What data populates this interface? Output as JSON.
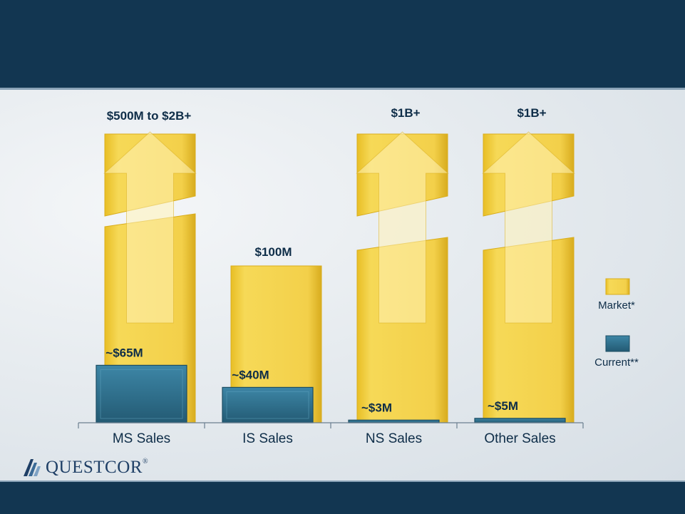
{
  "colors": {
    "market": "#f2cf3e",
    "market_edge": "#d9ad1c",
    "current": "#2e6f8c",
    "current_edge": "#1c4d63",
    "text": "#0e2d48"
  },
  "chart_data": {
    "type": "bar",
    "categories": [
      "MS Sales",
      "IS Sales",
      "NS Sales",
      "Other Sales"
    ],
    "series": [
      {
        "name": "Market*",
        "values": [
          null,
          100,
          null,
          null
        ],
        "labels": [
          "$500M to $2B+",
          "$100M",
          "$1B+",
          "$1B+"
        ],
        "open_ended": [
          true,
          false,
          true,
          true
        ]
      },
      {
        "name": "Current**",
        "values": [
          65,
          40,
          3,
          5
        ],
        "labels": [
          "~$65M",
          "~$40M",
          "~$3M",
          "~$5M"
        ]
      }
    ],
    "legend": {
      "position": "right",
      "items": [
        "Market*",
        "Current**"
      ]
    },
    "grid": false,
    "xlabel": "",
    "ylabel": ""
  },
  "logo": {
    "text": "QUESTCOR",
    "mark": "®"
  }
}
